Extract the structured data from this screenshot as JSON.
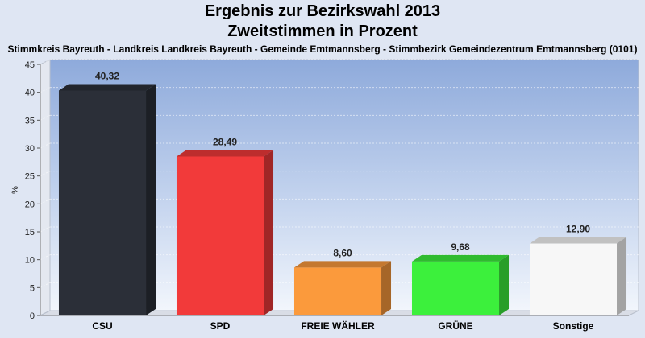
{
  "chart_data": {
    "type": "bar",
    "title": "Ergebnis zur Bezirkswahl 2013",
    "subtitle": "Zweitstimmen in Prozent",
    "caption": "Stimmkreis Bayreuth - Landkreis Landkreis Bayreuth - Gemeinde Emtmannsberg - Stimmbezirk Gemeindezentrum Emtmannsberg (0101)",
    "ylabel": "%",
    "xlabel": "",
    "ylim": [
      0,
      45
    ],
    "yticks": [
      0,
      5,
      10,
      15,
      20,
      25,
      30,
      35,
      40,
      45
    ],
    "grid": true,
    "categories": [
      "CSU",
      "SPD",
      "FREIE WÄHLER",
      "GRÜNE",
      "Sonstige"
    ],
    "values": [
      40.32,
      28.49,
      8.6,
      9.68,
      12.9
    ],
    "value_labels": [
      "40,32",
      "28,49",
      "8,60",
      "9,68",
      "12,90"
    ],
    "colors": [
      "#2b2f38",
      "#f23a3a",
      "#fb9a3c",
      "#3cf03c",
      "#f7f7f7"
    ]
  }
}
